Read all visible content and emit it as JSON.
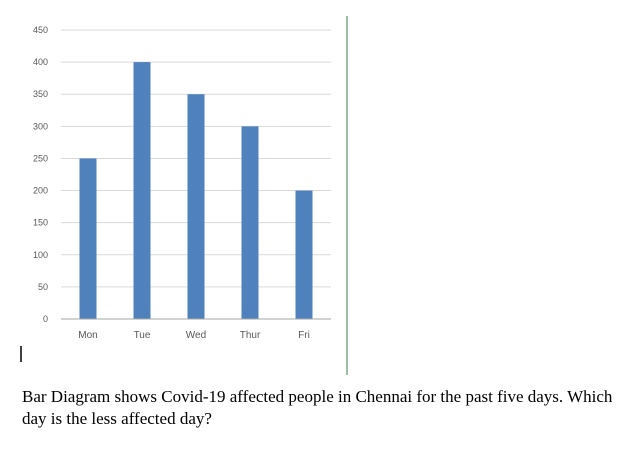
{
  "chart_data": {
    "type": "bar",
    "categories": [
      "Mon",
      "Tue",
      "Wed",
      "Thur",
      "Fri"
    ],
    "values": [
      250,
      400,
      350,
      300,
      200
    ],
    "y_ticks": [
      0,
      50,
      100,
      150,
      200,
      250,
      300,
      350,
      400,
      450
    ],
    "ylim": [
      0,
      450
    ],
    "grid": true,
    "legend": "none",
    "bar_color": "#4F81BD",
    "grid_color": "#D9D9D9",
    "border_color": "#A6A6A6"
  },
  "caption": {
    "text": "Bar Diagram shows Covid-19 affected people in Chennai for the past five days. Which day is the less affected day?"
  }
}
